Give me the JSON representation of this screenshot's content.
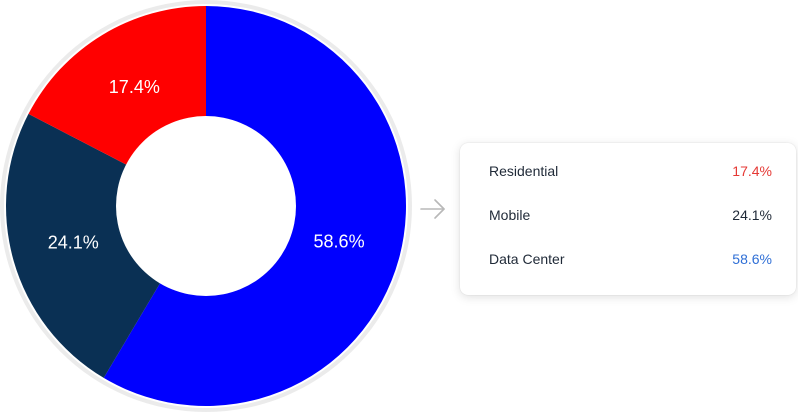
{
  "chart_data": {
    "type": "pie",
    "variant": "donut",
    "categories": [
      "Residential",
      "Mobile",
      "Data Center"
    ],
    "values": [
      17.4,
      24.1,
      58.6
    ],
    "unit": "%",
    "slice_labels": [
      "17.4%",
      "24.1%",
      "58.6%"
    ],
    "colors": [
      "#ff0000",
      "#0a3054",
      "#0000ff"
    ],
    "title": "",
    "legend_placement": "right"
  },
  "legend": {
    "rows": [
      {
        "name": "Residential",
        "value": "17.4%",
        "color": "#e53935"
      },
      {
        "name": "Mobile",
        "value": "24.1%",
        "color": "#1f2937"
      },
      {
        "name": "Data Center",
        "value": "58.6%",
        "color": "#2f6fd6"
      }
    ]
  },
  "icons": {
    "arrow": "arrow-right-icon"
  }
}
